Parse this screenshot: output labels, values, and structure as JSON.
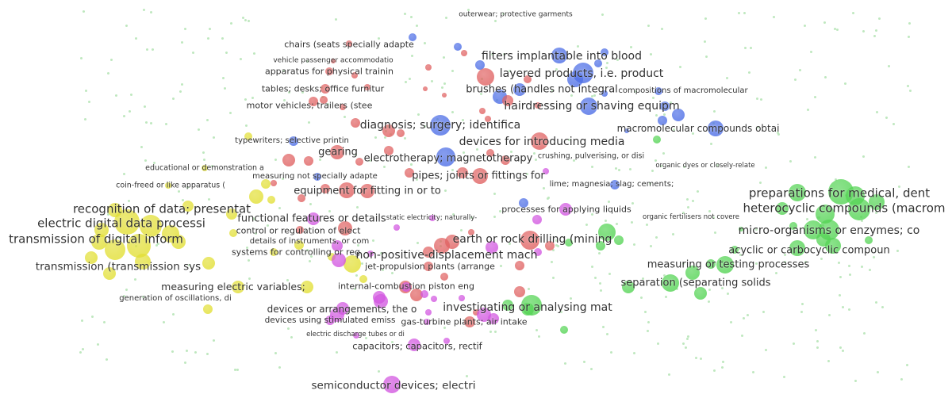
{
  "clusters": {
    "red": "#e06262",
    "blue": "#4d6ee6",
    "green": "#55d455",
    "yellow": "#e2df35",
    "purple": "#d256e0",
    "background_dot": "#bfe8bf"
  },
  "nodes": [
    {
      "label": "outerwear; protective garments",
      "cluster": "blue"
    },
    {
      "label": "chairs (seats specially adapte",
      "cluster": "red"
    },
    {
      "label": "vehicle passenger accommodatio",
      "cluster": "red"
    },
    {
      "label": "apparatus for physical trainin",
      "cluster": "red"
    },
    {
      "label": "tables; desks; office furnitur",
      "cluster": "red"
    },
    {
      "label": "motor vehicles; trailers (stee",
      "cluster": "red"
    },
    {
      "label": "filters implantable into blood",
      "cluster": "blue"
    },
    {
      "label": "layered products, i.e. product",
      "cluster": "blue"
    },
    {
      "label": "brushes (handles not integral",
      "cluster": "blue"
    },
    {
      "label": "compositions of macromolecular",
      "cluster": "blue"
    },
    {
      "label": "hairdressing or shaving equipm",
      "cluster": "blue"
    },
    {
      "label": "diagnosis; surgery; identifica",
      "cluster": "blue"
    },
    {
      "label": "macromolecular compounds obtai",
      "cluster": "blue"
    },
    {
      "label": "typewriters; selective printin",
      "cluster": "blue"
    },
    {
      "label": "devices for introducing media",
      "cluster": "red"
    },
    {
      "label": "gearing",
      "cluster": "red"
    },
    {
      "label": "crushing, pulverising, or disi",
      "cluster": "green"
    },
    {
      "label": "electrotherapy; magnetotherapy",
      "cluster": "blue"
    },
    {
      "label": "organic dyes or closely-relate",
      "cluster": "green"
    },
    {
      "label": "educational or demonstration a",
      "cluster": "yellow"
    },
    {
      "label": "measuring not specially adapte",
      "cluster": "blue"
    },
    {
      "label": "pipes; joints or fittings for",
      "cluster": "red"
    },
    {
      "label": "lime; magnesia; slag; cements;",
      "cluster": "blue"
    },
    {
      "label": "coin-freed or like apparatus (",
      "cluster": "yellow"
    },
    {
      "label": "equipment for fitting in or to",
      "cluster": "red"
    },
    {
      "label": "preparations for medical, dent",
      "cluster": "green"
    },
    {
      "label": "recognition of data; presentat",
      "cluster": "yellow"
    },
    {
      "label": "heterocyclic compounds (macrom",
      "cluster": "green"
    },
    {
      "label": "processes for applying liquids",
      "cluster": "purple"
    },
    {
      "label": "functional features or details",
      "cluster": "purple"
    },
    {
      "label": "static electricity; naturally-",
      "cluster": "purple"
    },
    {
      "label": "electric digital data processi",
      "cluster": "yellow"
    },
    {
      "label": "organic fertilisers not covere",
      "cluster": "green"
    },
    {
      "label": "control or regulation of elect",
      "cluster": "red"
    },
    {
      "label": "earth or rock drilling (mining",
      "cluster": "red"
    },
    {
      "label": "micro-organisms or enzymes; co",
      "cluster": "green"
    },
    {
      "label": "transmission of digital inform",
      "cluster": "yellow"
    },
    {
      "label": "details of instruments, or com",
      "cluster": "purple"
    },
    {
      "label": "systems for controlling or reg",
      "cluster": "yellow"
    },
    {
      "label": "non-positive-displacement mach",
      "cluster": "red"
    },
    {
      "label": "acyclic or carbocyclic compoun",
      "cluster": "green"
    },
    {
      "label": "jet-propulsion plants (arrange",
      "cluster": "red"
    },
    {
      "label": "measuring or testing processes",
      "cluster": "green"
    },
    {
      "label": "transmission (transmission sys",
      "cluster": "yellow"
    },
    {
      "label": "measuring electric variables;",
      "cluster": "yellow"
    },
    {
      "label": "internal-combustion piston eng",
      "cluster": "red"
    },
    {
      "label": "separation (separating solids",
      "cluster": "green"
    },
    {
      "label": "generation of oscillations, di",
      "cluster": "yellow"
    },
    {
      "label": "investigating or analysing mat",
      "cluster": "green"
    },
    {
      "label": "devices or arrangements, the o",
      "cluster": "purple"
    },
    {
      "label": "devices using stimulated emiss",
      "cluster": "purple"
    },
    {
      "label": "gas-turbine plants; air intake",
      "cluster": "red"
    },
    {
      "label": "electric discharge tubes or di",
      "cluster": "purple"
    },
    {
      "label": "capacitors; capacitors, rectif",
      "cluster": "purple"
    },
    {
      "label": "semiconductor devices; electri",
      "cluster": "purple"
    }
  ]
}
